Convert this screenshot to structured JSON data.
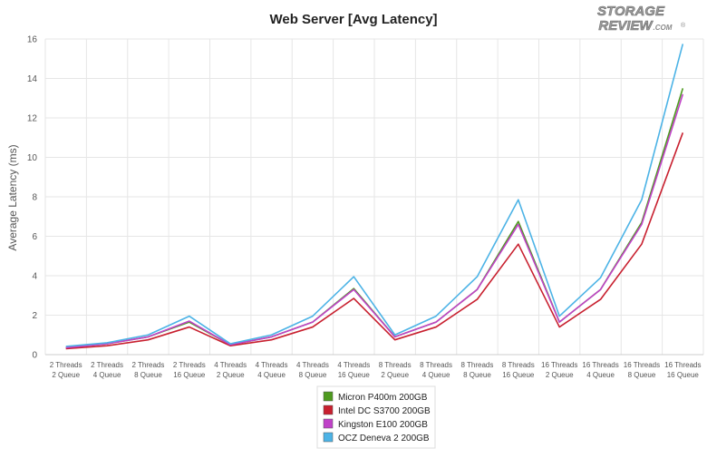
{
  "chart_data": {
    "type": "line",
    "title": "Web Server [Avg Latency]",
    "xlabel": "",
    "ylabel": "Average Latency (ms)",
    "ylim": [
      0,
      16
    ],
    "yticks": [
      0,
      2,
      4,
      6,
      8,
      10,
      12,
      14,
      16
    ],
    "grid": true,
    "legend_position": "bottom-center",
    "categories": [
      [
        "2 Threads",
        "2 Queue"
      ],
      [
        "2 Threads",
        "4 Queue"
      ],
      [
        "2 Threads",
        "8 Queue"
      ],
      [
        "2 Threads",
        "16 Queue"
      ],
      [
        "4 Threads",
        "2 Queue"
      ],
      [
        "4 Threads",
        "4 Queue"
      ],
      [
        "4 Threads",
        "8 Queue"
      ],
      [
        "4 Threads",
        "16 Queue"
      ],
      [
        "8 Threads",
        "2 Queue"
      ],
      [
        "8 Threads",
        "4 Queue"
      ],
      [
        "8 Threads",
        "8 Queue"
      ],
      [
        "8 Threads",
        "16 Queue"
      ],
      [
        "16 Threads",
        "2 Queue"
      ],
      [
        "16 Threads",
        "4 Queue"
      ],
      [
        "16 Threads",
        "8 Queue"
      ],
      [
        "16 Threads",
        "16 Queue"
      ]
    ],
    "series": [
      {
        "name": "Micron P400m 200GB",
        "color": "#4e9a1f",
        "values": [
          0.35,
          0.55,
          0.9,
          1.65,
          0.5,
          0.9,
          1.65,
          3.35,
          0.9,
          1.65,
          3.3,
          6.75,
          1.65,
          3.3,
          6.7,
          13.5
        ]
      },
      {
        "name": "Intel DC S3700 200GB",
        "color": "#c8202f",
        "values": [
          0.3,
          0.45,
          0.75,
          1.4,
          0.45,
          0.75,
          1.4,
          2.85,
          0.75,
          1.4,
          2.8,
          5.6,
          1.4,
          2.8,
          5.6,
          11.25
        ]
      },
      {
        "name": "Kingston E100 200GB",
        "color": "#c042c8",
        "values": [
          0.35,
          0.55,
          0.9,
          1.7,
          0.5,
          0.9,
          1.65,
          3.3,
          0.9,
          1.65,
          3.3,
          6.6,
          1.65,
          3.3,
          6.6,
          13.2
        ]
      },
      {
        "name": "OCZ Deneva 2 200GB",
        "color": "#4cb3e6",
        "values": [
          0.42,
          0.6,
          1.0,
          1.95,
          0.55,
          1.0,
          1.95,
          3.95,
          1.0,
          1.95,
          3.95,
          7.85,
          1.95,
          3.9,
          7.85,
          15.75
        ]
      }
    ]
  },
  "logo": {
    "text_line1": "STORAGE",
    "text_line2": "REVIEW",
    "suffix": ".COM",
    "registered": "®"
  }
}
